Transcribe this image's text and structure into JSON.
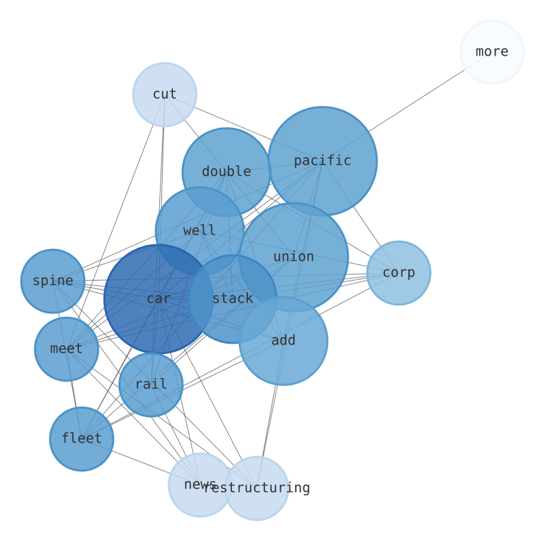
{
  "nodes": [
    {
      "label": "more"
    },
    {
      "label": "cut"
    },
    {
      "label": "pacific"
    },
    {
      "label": "double"
    },
    {
      "label": "well"
    },
    {
      "label": "union"
    },
    {
      "label": "corp"
    },
    {
      "label": "spine"
    },
    {
      "label": "car"
    },
    {
      "label": "stack"
    },
    {
      "label": "add"
    },
    {
      "label": "meet"
    },
    {
      "label": "rail"
    },
    {
      "label": "fleet"
    },
    {
      "label": "news"
    },
    {
      "label": "restructuring"
    }
  ]
}
